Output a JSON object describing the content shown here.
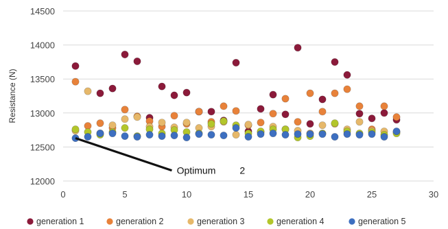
{
  "chart_data": {
    "type": "scatter",
    "title": "",
    "xlabel": "",
    "ylabel": "Resistance (N)",
    "xlim": [
      0,
      30
    ],
    "ylim": [
      12000,
      14500
    ],
    "xticks": [
      0,
      5,
      10,
      15,
      20,
      25,
      30
    ],
    "yticks": [
      12000,
      12500,
      13000,
      13500,
      14000,
      14500
    ],
    "grid": "horizontal",
    "legend": "bottom",
    "annotation": {
      "text": "Optimum",
      "points_to": [
        1,
        12630
      ],
      "stray_text": "2"
    },
    "series": [
      {
        "name": "generation 1",
        "color": "#8b1a3a",
        "x": [
          1,
          3,
          4,
          5,
          6,
          7,
          8,
          9,
          10,
          11,
          12,
          13,
          14,
          15,
          16,
          17,
          18,
          19,
          20,
          21,
          22,
          23,
          24,
          25,
          26,
          27
        ],
        "y": [
          13690,
          13290,
          13360,
          13860,
          13760,
          12930,
          13390,
          13260,
          13300,
          13020,
          13020,
          12890,
          13740,
          12730,
          13060,
          13270,
          12980,
          13960,
          12840,
          13200,
          13750,
          13560,
          12990,
          12920,
          13000,
          12900
        ]
      },
      {
        "name": "generation 2",
        "color": "#e8823a",
        "x": [
          1,
          2,
          3,
          4,
          5,
          6,
          7,
          8,
          9,
          10,
          11,
          12,
          13,
          14,
          15,
          16,
          17,
          18,
          19,
          20,
          21,
          22,
          23,
          24,
          25,
          26,
          27
        ],
        "y": [
          13460,
          12810,
          12850,
          12780,
          13050,
          12950,
          12880,
          12800,
          12960,
          12840,
          13020,
          12870,
          13100,
          13030,
          12820,
          12860,
          12990,
          13210,
          12870,
          13290,
          13020,
          13290,
          13350,
          13100,
          12760,
          13100,
          12940
        ]
      },
      {
        "name": "generation 3",
        "color": "#e6b86a",
        "x": [
          1,
          2,
          3,
          4,
          5,
          6,
          7,
          8,
          9,
          10,
          11,
          12,
          13,
          14,
          15,
          16,
          17,
          18,
          19,
          20,
          21,
          22,
          23,
          24,
          25,
          26,
          27
        ],
        "y": [
          12740,
          13320,
          12700,
          12820,
          12910,
          12940,
          12800,
          12860,
          12790,
          12860,
          12780,
          12800,
          12870,
          12680,
          12830,
          12720,
          12800,
          12760,
          12740,
          12700,
          12820,
          12840,
          12760,
          12870,
          12740,
          12730,
          12720
        ]
      },
      {
        "name": "generation 4",
        "color": "#b3c62b",
        "x": [
          1,
          2,
          3,
          4,
          5,
          6,
          7,
          8,
          9,
          10,
          11,
          12,
          13,
          14,
          15,
          16,
          17,
          18,
          19,
          20,
          21,
          22,
          23,
          24,
          25,
          26,
          27
        ],
        "y": [
          12760,
          12720,
          12680,
          12720,
          12780,
          12660,
          12760,
          12700,
          12750,
          12720,
          12700,
          12840,
          12880,
          12820,
          12700,
          12730,
          12760,
          12760,
          12640,
          12660,
          12700,
          12850,
          12730,
          12700,
          12720,
          12680,
          12700
        ]
      },
      {
        "name": "generation 5",
        "color": "#3d6fc0",
        "x": [
          1,
          2,
          3,
          4,
          5,
          6,
          7,
          8,
          9,
          10,
          11,
          12,
          13,
          14,
          15,
          16,
          17,
          18,
          19,
          20,
          21,
          22,
          23,
          24,
          25,
          26,
          27
        ],
        "y": [
          12630,
          12650,
          12700,
          12700,
          12660,
          12650,
          12680,
          12660,
          12670,
          12640,
          12690,
          12680,
          12670,
          12780,
          12650,
          12690,
          12700,
          12680,
          12690,
          12690,
          12690,
          12650,
          12690,
          12680,
          12690,
          12650,
          12730
        ]
      }
    ]
  }
}
